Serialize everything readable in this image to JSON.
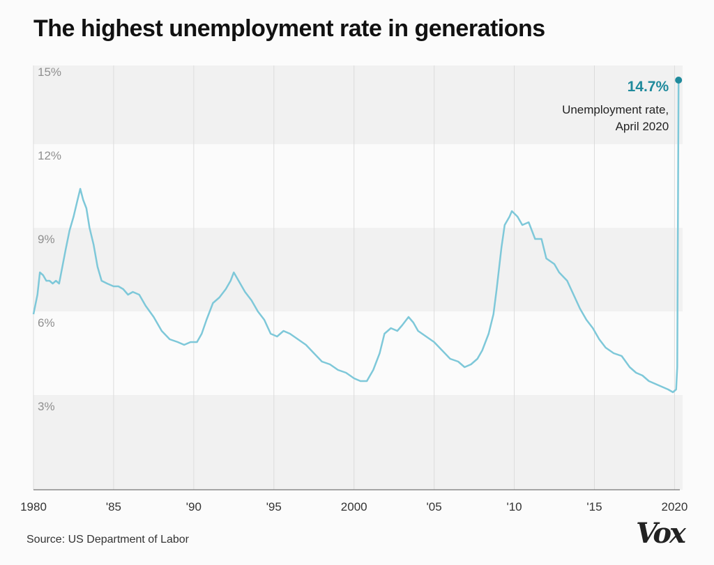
{
  "title": "The highest unemployment rate in generations",
  "source": "Source: US Department of Labor",
  "logo": "Vox",
  "colors": {
    "line": "#7ec8d9",
    "accent": "#1f8a9c",
    "band": "#f1f1f1",
    "grid": "#dcdcdc"
  },
  "annotation": {
    "value": "14.7%",
    "line1": "Unemployment rate,",
    "line2": "April 2020"
  },
  "chart_data": {
    "type": "line",
    "title": "The highest unemployment rate in generations",
    "xlabel": "",
    "ylabel": "",
    "xlim": [
      1980,
      2020.33
    ],
    "ylim": [
      0,
      15
    ],
    "y_ticks": [
      3,
      6,
      9,
      12,
      15
    ],
    "y_tick_labels": [
      "3%",
      "6%",
      "9%",
      "12%",
      "15%"
    ],
    "x_ticks": [
      1980,
      1985,
      1990,
      1995,
      2000,
      2005,
      2010,
      2015,
      2020
    ],
    "x_tick_labels": [
      "1980",
      "'85",
      "'90",
      "'95",
      "2000",
      "'05",
      "'10",
      "'15",
      "2020"
    ],
    "grid": "vertical lines at each x tick; alternating horizontal bands",
    "series": [
      {
        "values_format": "[year, percent]",
        "values": [
          [
            1980.0,
            6.3
          ],
          [
            1980.25,
            7.0
          ],
          [
            1980.4,
            7.8
          ],
          [
            1980.6,
            7.7
          ],
          [
            1980.8,
            7.5
          ],
          [
            1981.0,
            7.5
          ],
          [
            1981.2,
            7.4
          ],
          [
            1981.4,
            7.5
          ],
          [
            1981.6,
            7.4
          ],
          [
            1981.8,
            8.0
          ],
          [
            1982.0,
            8.6
          ],
          [
            1982.25,
            9.3
          ],
          [
            1982.5,
            9.8
          ],
          [
            1982.75,
            10.4
          ],
          [
            1982.92,
            10.8
          ],
          [
            1983.1,
            10.4
          ],
          [
            1983.3,
            10.1
          ],
          [
            1983.5,
            9.4
          ],
          [
            1983.75,
            8.8
          ],
          [
            1984.0,
            8.0
          ],
          [
            1984.25,
            7.5
          ],
          [
            1984.6,
            7.4
          ],
          [
            1985.0,
            7.3
          ],
          [
            1985.3,
            7.3
          ],
          [
            1985.6,
            7.2
          ],
          [
            1985.9,
            7.0
          ],
          [
            1986.2,
            7.1
          ],
          [
            1986.6,
            7.0
          ],
          [
            1987.0,
            6.6
          ],
          [
            1987.5,
            6.2
          ],
          [
            1988.0,
            5.7
          ],
          [
            1988.5,
            5.4
          ],
          [
            1989.0,
            5.3
          ],
          [
            1989.4,
            5.2
          ],
          [
            1989.8,
            5.3
          ],
          [
            1990.2,
            5.3
          ],
          [
            1990.5,
            5.6
          ],
          [
            1990.8,
            6.1
          ],
          [
            1991.2,
            6.7
          ],
          [
            1991.6,
            6.9
          ],
          [
            1992.0,
            7.2
          ],
          [
            1992.3,
            7.5
          ],
          [
            1992.5,
            7.8
          ],
          [
            1992.8,
            7.5
          ],
          [
            1993.2,
            7.1
          ],
          [
            1993.6,
            6.8
          ],
          [
            1994.0,
            6.4
          ],
          [
            1994.4,
            6.1
          ],
          [
            1994.8,
            5.6
          ],
          [
            1995.2,
            5.5
          ],
          [
            1995.6,
            5.7
          ],
          [
            1996.0,
            5.6
          ],
          [
            1996.5,
            5.4
          ],
          [
            1997.0,
            5.2
          ],
          [
            1997.5,
            4.9
          ],
          [
            1998.0,
            4.6
          ],
          [
            1998.5,
            4.5
          ],
          [
            1999.0,
            4.3
          ],
          [
            1999.5,
            4.2
          ],
          [
            2000.0,
            4.0
          ],
          [
            2000.4,
            3.9
          ],
          [
            2000.8,
            3.9
          ],
          [
            2001.2,
            4.3
          ],
          [
            2001.6,
            4.9
          ],
          [
            2001.9,
            5.6
          ],
          [
            2002.3,
            5.8
          ],
          [
            2002.7,
            5.7
          ],
          [
            2003.0,
            5.9
          ],
          [
            2003.4,
            6.2
          ],
          [
            2003.7,
            6.0
          ],
          [
            2004.0,
            5.7
          ],
          [
            2004.5,
            5.5
          ],
          [
            2005.0,
            5.3
          ],
          [
            2005.5,
            5.0
          ],
          [
            2006.0,
            4.7
          ],
          [
            2006.5,
            4.6
          ],
          [
            2006.9,
            4.4
          ],
          [
            2007.3,
            4.5
          ],
          [
            2007.7,
            4.7
          ],
          [
            2008.0,
            5.0
          ],
          [
            2008.4,
            5.6
          ],
          [
            2008.7,
            6.3
          ],
          [
            2008.9,
            7.2
          ],
          [
            2009.2,
            8.7
          ],
          [
            2009.4,
            9.5
          ],
          [
            2009.7,
            9.8
          ],
          [
            2009.85,
            10.0
          ],
          [
            2010.2,
            9.8
          ],
          [
            2010.5,
            9.5
          ],
          [
            2010.9,
            9.6
          ],
          [
            2011.3,
            9.0
          ],
          [
            2011.7,
            9.0
          ],
          [
            2012.0,
            8.3
          ],
          [
            2012.5,
            8.1
          ],
          [
            2012.8,
            7.8
          ],
          [
            2013.3,
            7.5
          ],
          [
            2013.7,
            7.0
          ],
          [
            2014.1,
            6.5
          ],
          [
            2014.5,
            6.1
          ],
          [
            2014.9,
            5.8
          ],
          [
            2015.3,
            5.4
          ],
          [
            2015.7,
            5.1
          ],
          [
            2016.2,
            4.9
          ],
          [
            2016.7,
            4.8
          ],
          [
            2017.2,
            4.4
          ],
          [
            2017.6,
            4.2
          ],
          [
            2018.0,
            4.1
          ],
          [
            2018.4,
            3.9
          ],
          [
            2018.8,
            3.8
          ],
          [
            2019.2,
            3.7
          ],
          [
            2019.6,
            3.6
          ],
          [
            2019.9,
            3.5
          ],
          [
            2020.1,
            3.6
          ],
          [
            2020.17,
            4.4
          ],
          [
            2020.25,
            14.7
          ]
        ]
      }
    ]
  }
}
